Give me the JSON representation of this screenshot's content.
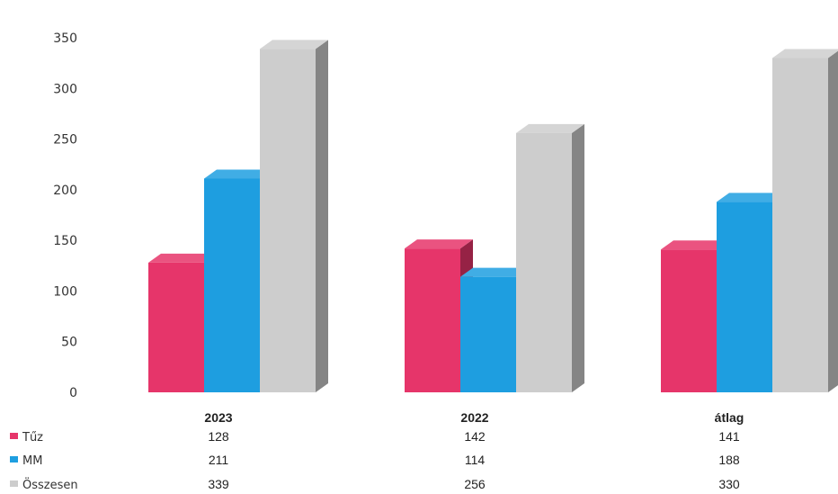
{
  "chart_data": {
    "type": "bar",
    "categories": [
      "2023",
      "2022",
      "átlag"
    ],
    "series": [
      {
        "name": "Tűz",
        "values": [
          128,
          142,
          141
        ],
        "color": "#e6356a"
      },
      {
        "name": "MM",
        "values": [
          211,
          114,
          188
        ],
        "color": "#1e9ee0"
      },
      {
        "name": "Összesen",
        "values": [
          339,
          256,
          330
        ],
        "color": "#cdcdcd"
      }
    ],
    "yticks": [
      "0",
      "50",
      "100",
      "150",
      "200",
      "250",
      "300",
      "350"
    ],
    "ylim": [
      0,
      350
    ],
    "grid": false,
    "legend": "bottom-left data table",
    "style": "3d-columns"
  }
}
